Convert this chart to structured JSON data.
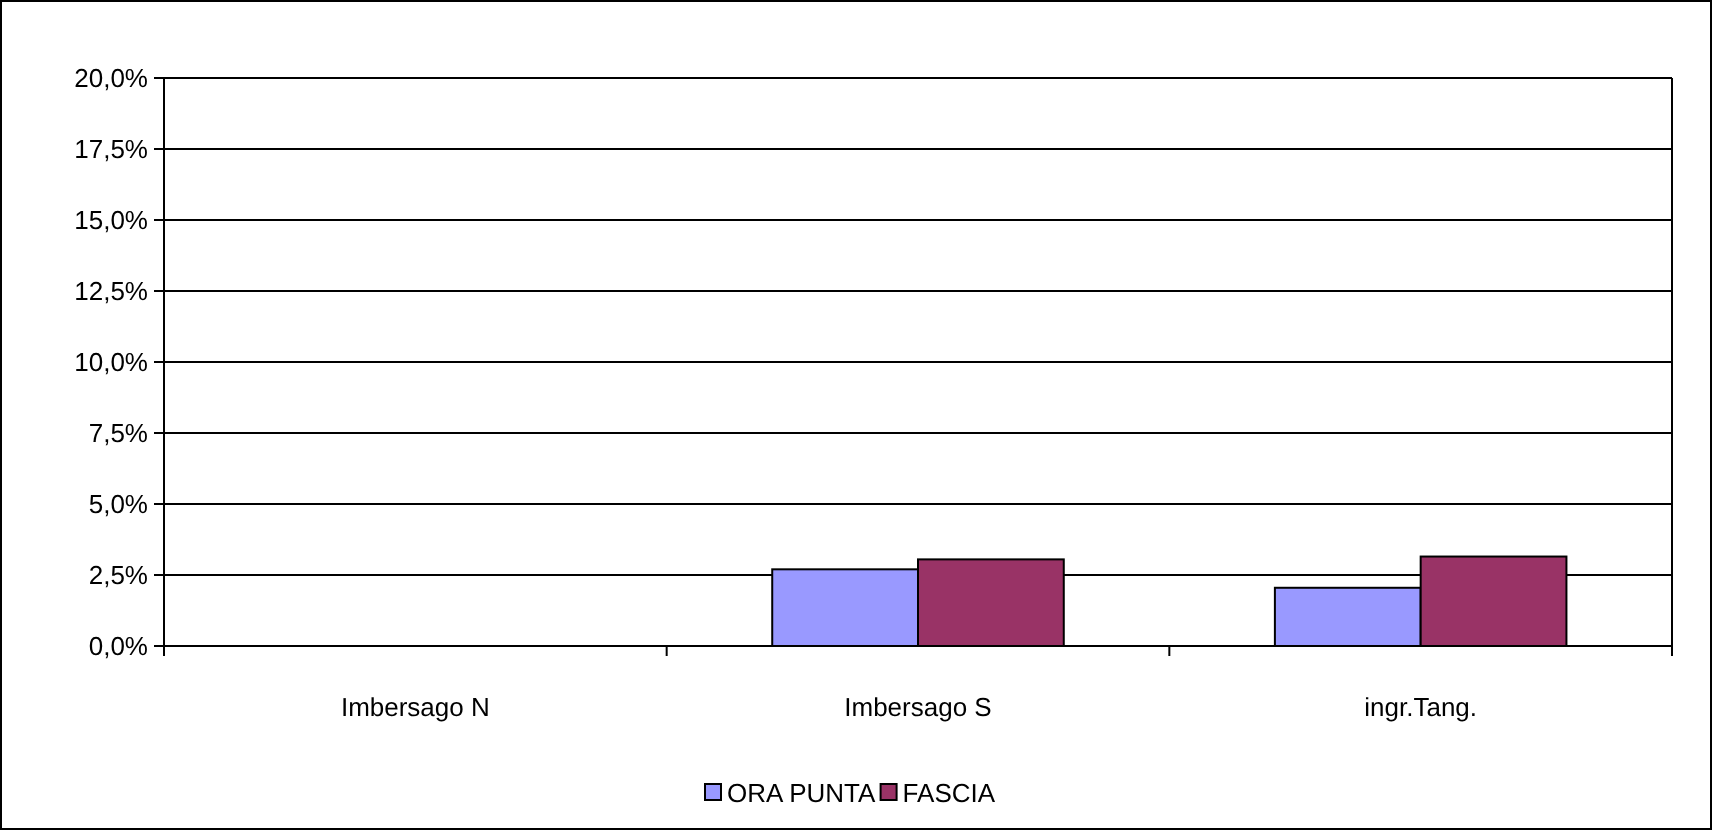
{
  "chart_data": {
    "type": "bar",
    "categories": [
      "Imbersago N",
      "Imbersago S",
      "ingr.Tang."
    ],
    "series": [
      {
        "name": "ORA PUNTA",
        "color": "#9999ff",
        "values": [
          0,
          2.7,
          2.05
        ]
      },
      {
        "name": "FASCIA",
        "color": "#993366",
        "values": [
          0,
          3.05,
          3.15
        ]
      }
    ],
    "ylim": [
      0,
      20
    ],
    "yticks": [
      {
        "value": 0,
        "label": "0,0%"
      },
      {
        "value": 2.5,
        "label": "2,5%"
      },
      {
        "value": 5,
        "label": "5,0%"
      },
      {
        "value": 7.5,
        "label": "7,5%"
      },
      {
        "value": 10,
        "label": "10,0%"
      },
      {
        "value": 12.5,
        "label": "12,5%"
      },
      {
        "value": 15,
        "label": "15,0%"
      },
      {
        "value": 17.5,
        "label": "17,5%"
      },
      {
        "value": 20,
        "label": "20,0%"
      }
    ],
    "grid": "y",
    "legend": "bottom"
  }
}
